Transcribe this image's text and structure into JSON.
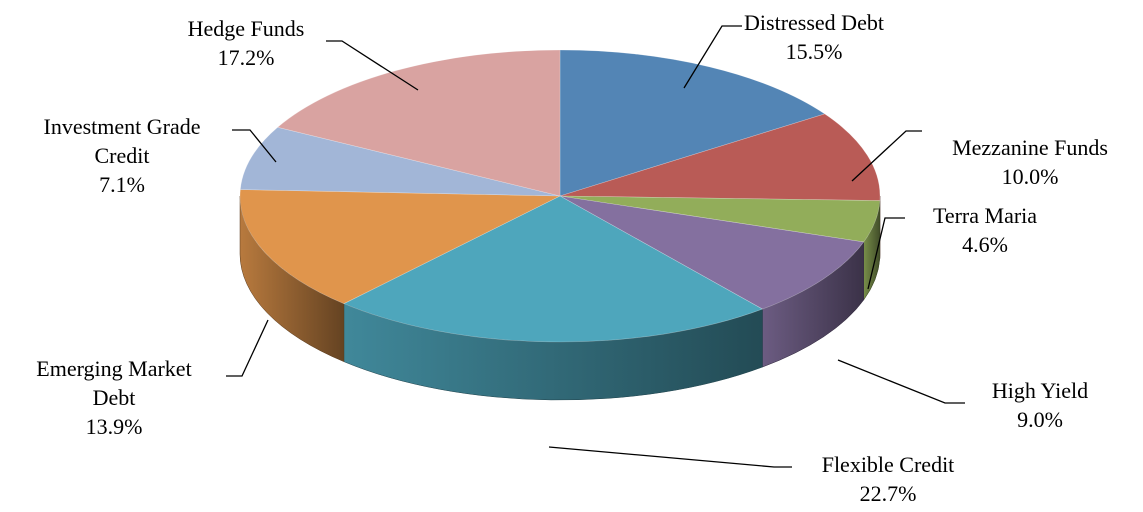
{
  "chart_data": {
    "type": "pie",
    "style": "3d-exploded-none",
    "slices": [
      {
        "name": "Distressed Debt",
        "value": 15.5,
        "label": "15.5%",
        "color": "#5385B5"
      },
      {
        "name": "Mezzanine Funds",
        "value": 10.0,
        "label": "10.0%",
        "color": "#B95B56"
      },
      {
        "name": "Terra Maria",
        "value": 4.6,
        "label": "4.6%",
        "color": "#92AD5A"
      },
      {
        "name": "High Yield",
        "value": 9.0,
        "label": "9.0%",
        "color": "#84709F"
      },
      {
        "name": "Flexible Credit",
        "value": 22.7,
        "label": "22.7%",
        "color": "#4EA6BC"
      },
      {
        "name": "Emerging Market Debt",
        "value": 13.9,
        "label": "13.9%",
        "color": "#E0954C"
      },
      {
        "name": "Investment Grade Credit",
        "value": 7.1,
        "label": "7.1%",
        "color": "#A2B6D7"
      },
      {
        "name": "Hedge Funds",
        "value": 17.2,
        "label": "17.2%",
        "color": "#D9A3A1"
      }
    ],
    "label_text": [
      {
        "lines": [
          "Distressed Debt",
          "15.5%"
        ]
      },
      {
        "lines": [
          "Mezzanine Funds",
          "10.0%"
        ]
      },
      {
        "lines": [
          "Terra Maria",
          "4.6%"
        ]
      },
      {
        "lines": [
          "High Yield",
          "9.0%"
        ]
      },
      {
        "lines": [
          "Flexible Credit",
          "22.7%"
        ]
      },
      {
        "lines": [
          "Emerging Market",
          "Debt",
          "13.9%"
        ]
      },
      {
        "lines": [
          "Investment Grade",
          "Credit",
          "7.1%"
        ]
      },
      {
        "lines": [
          "Hedge Funds",
          "17.2%"
        ]
      }
    ]
  }
}
